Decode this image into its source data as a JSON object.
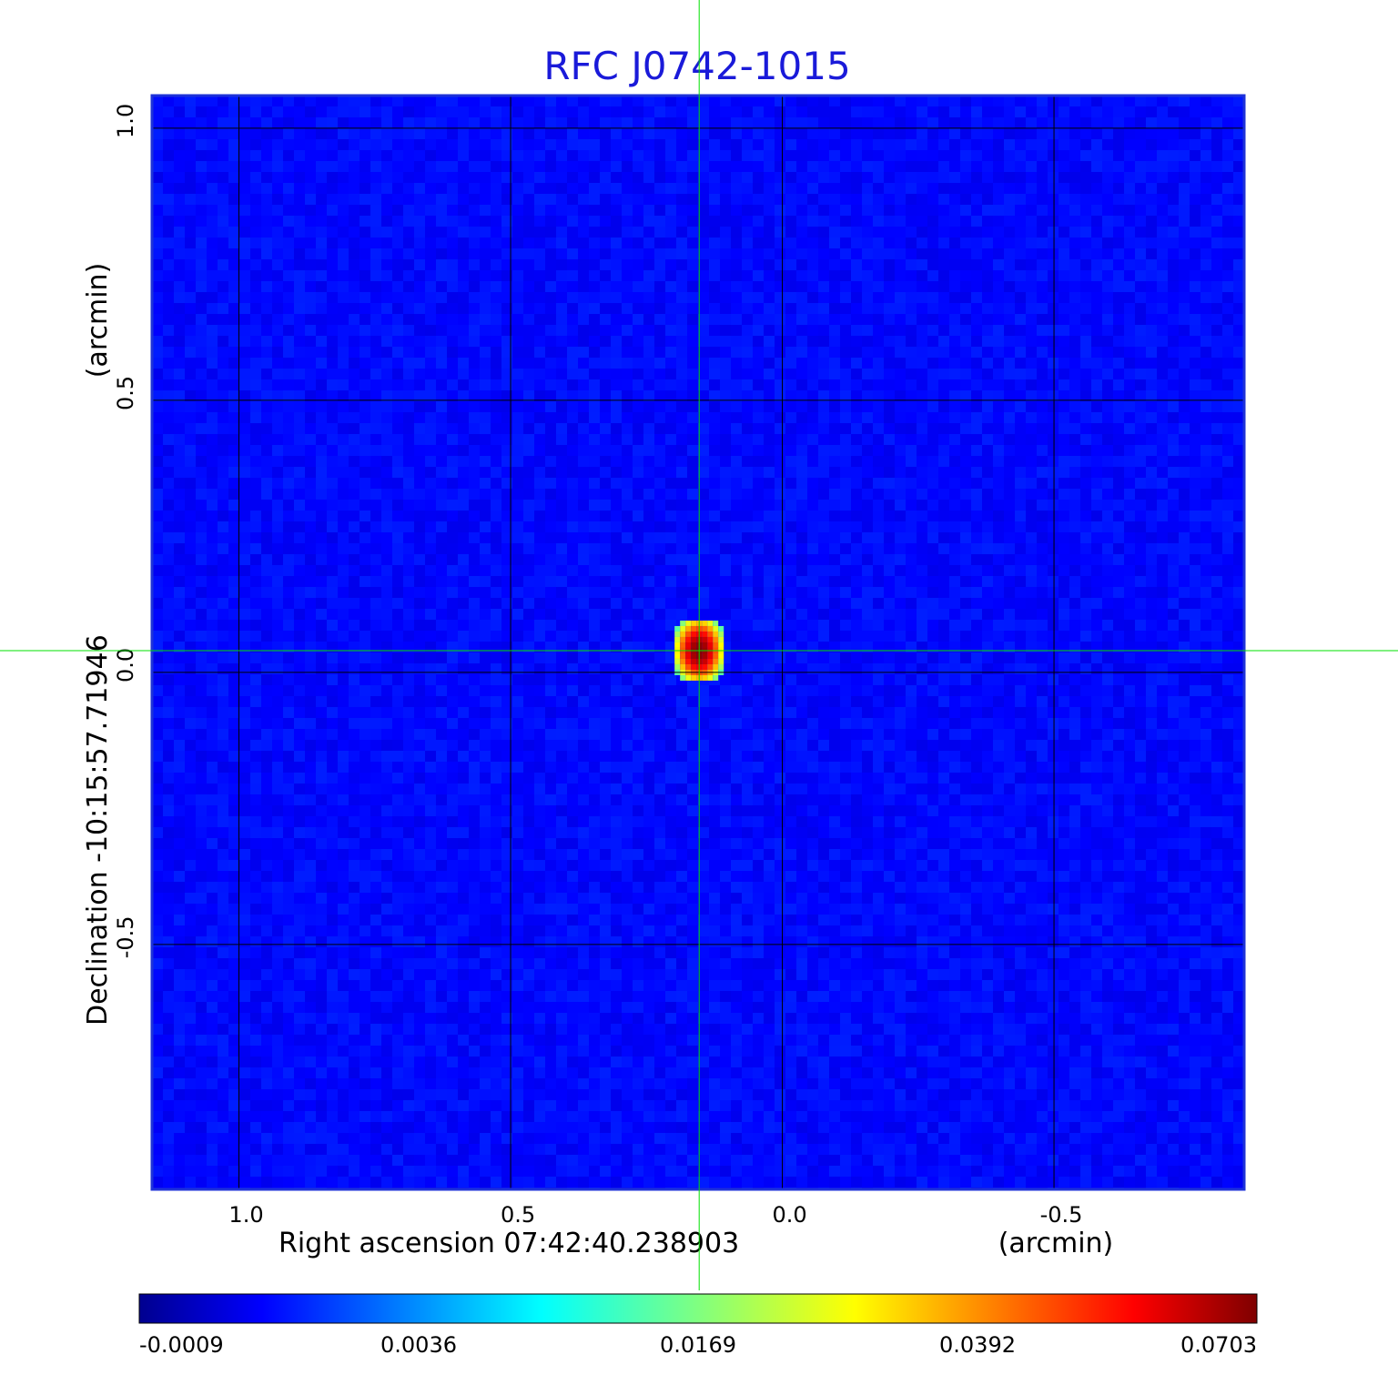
{
  "chart_data": {
    "type": "heatmap",
    "title": "RFC J0742-1015",
    "xlabel": "Right ascension  07:42:40.238903",
    "ylabel": "Declination  -10:15:57.71946",
    "x_unit": "(arcmin)",
    "y_unit": "(arcmin)",
    "xlim": [
      1.16,
      -0.85
    ],
    "ylim": [
      -0.99,
      1.02
    ],
    "xaxis_direction": "decreasing to the right",
    "x_ticks": [
      {
        "value": 1.0,
        "label": "1.0"
      },
      {
        "value": 0.5,
        "label": "0.5"
      },
      {
        "value": 0.0,
        "label": "0.0"
      },
      {
        "value": -0.5,
        "label": "-0.5"
      }
    ],
    "y_ticks": [
      {
        "value": 0.96,
        "label": "1.0"
      },
      {
        "value": 0.46,
        "label": "0.5"
      },
      {
        "value": -0.04,
        "label": "0.0"
      },
      {
        "value": -0.54,
        "label": "-0.5"
      }
    ],
    "grid": true,
    "grid_color": "#000000",
    "crosshair": {
      "x": 0.153,
      "y": 0.0,
      "color": "#00e000"
    },
    "sources": [
      {
        "x": 0.153,
        "y": 0.0,
        "peak": 0.0703,
        "sigma_x": 0.022,
        "sigma_y": 0.03
      }
    ],
    "colorbar": {
      "colormap": "jet",
      "ticks": [
        "-0.0009",
        "0.0036",
        "0.0169",
        "0.0392",
        "0.0703"
      ],
      "placement": "bottom"
    },
    "background_level": -0.0004,
    "colors": {
      "low": "#00008f",
      "background": "#0a3cf5",
      "high": "#7f0000"
    }
  }
}
